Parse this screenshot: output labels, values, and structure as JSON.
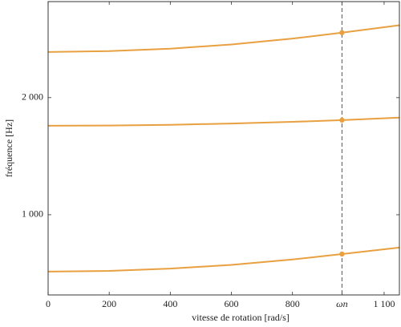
{
  "chart_data": {
    "type": "line",
    "xlabel": "vitesse de rotation [rad/s]",
    "ylabel": "fréquence [Hz]",
    "x": [
      0,
      200,
      400,
      600,
      800,
      962,
      1150
    ],
    "series": [
      {
        "color": "#e8a040",
        "values": [
          514,
          520,
          540,
          572,
          618,
          664,
          720
        ]
      },
      {
        "color": "#e8a040",
        "values": [
          1760,
          1762,
          1768,
          1779,
          1793,
          1808,
          1829
        ]
      },
      {
        "color": "#e8a040",
        "values": [
          2390,
          2397,
          2418,
          2454,
          2504,
          2555,
          2618
        ]
      }
    ],
    "xlim": [
      0,
      1150
    ],
    "ylim": [
      315,
      2820
    ],
    "xticks": [
      0,
      200,
      400,
      600,
      800,
      {
        "value": 962,
        "label": "ωn"
      },
      {
        "value": 1100,
        "label": "1 100"
      }
    ],
    "yticks": [
      {
        "value": 1000,
        "label": "1 000"
      },
      {
        "value": 2000,
        "label": "2 000"
      }
    ]
  }
}
